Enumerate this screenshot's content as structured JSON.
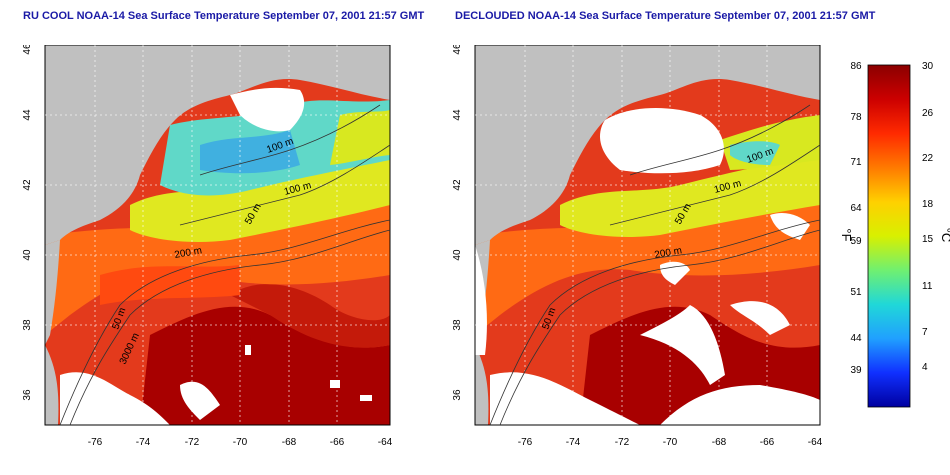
{
  "panels": [
    {
      "title": "RU COOL NOAA-14 Sea Surface Temperature September 07, 2001 21:57 GMT"
    },
    {
      "title": "DECLOUDED NOAA-14 Sea Surface Temperature September 07, 2001 21:57 GMT"
    }
  ],
  "axes": {
    "lon_ticks": [
      "-76",
      "-74",
      "-72",
      "-70",
      "-68",
      "-66",
      "-64"
    ],
    "lat_ticks": [
      "46",
      "44",
      "42",
      "40",
      "38",
      "36"
    ]
  },
  "contour_labels": [
    "100 m",
    "100 m",
    "50 m",
    "50 m",
    "200 m",
    "50 m",
    "3000 m"
  ],
  "colorbar": {
    "fahrenheit_ticks": [
      "86",
      "78",
      "71",
      "64",
      "59",
      "51",
      "44",
      "39"
    ],
    "celsius_ticks": [
      "30",
      "26",
      "22",
      "18",
      "15",
      "11",
      "7",
      "4"
    ],
    "unit_f": "°F",
    "unit_c": "°C",
    "stops": [
      "#8b0000",
      "#cc0000",
      "#ff2a00",
      "#ff7a00",
      "#ffd000",
      "#d8f000",
      "#70f070",
      "#20d8d8",
      "#20a0ff",
      "#1030ff",
      "#0000a0"
    ]
  },
  "colors": {
    "land": "#c0c0c0",
    "cloud": "#ffffff",
    "warm": "#e62e1a",
    "hot": "#a80000",
    "orange": "#ff6a14",
    "yellow": "#e8e820",
    "cool": "#60d8c8"
  }
}
